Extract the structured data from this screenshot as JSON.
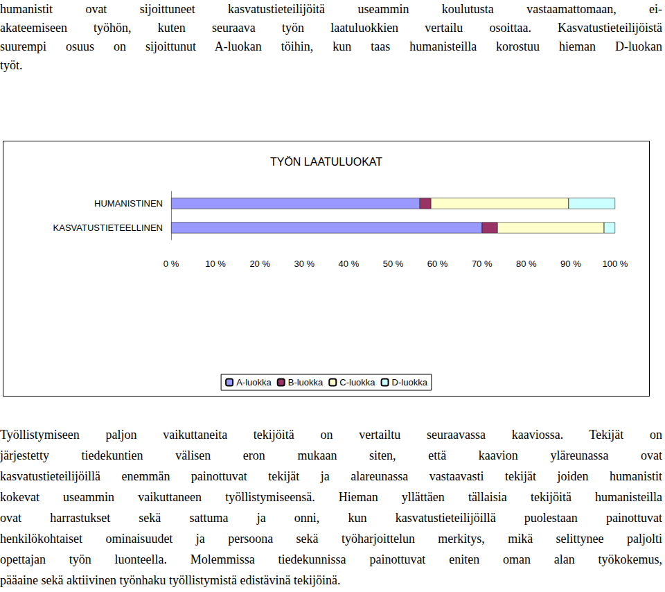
{
  "text_above": [
    "humanistit ovat sijoittuneet kasvatustieteilijöitä useammin koulutusta vastaamattomaan, ei-",
    "akateemiseen työhön, kuten seuraava työn laatuluokkien vertailu osoittaa. Kasvatustieteilijöistä",
    "suurempi osuus on sijoittunut A-luokan töihin, kun taas humanisteilla korostuu hieman D-luokan",
    "työt."
  ],
  "chart_data": {
    "type": "bar",
    "title": "TYÖN LAATULUOKAT",
    "orientation": "horizontal",
    "stacked": true,
    "legend": "bottom",
    "grid": false,
    "categories": [
      "HUMANISTINEN",
      "KASVATUSTIETEELLINEN"
    ],
    "series": [
      {
        "name": "A-luokka",
        "color": "#9999ff",
        "values": [
          56,
          70
        ]
      },
      {
        "name": "B-luokka",
        "color": "#993366",
        "values": [
          2.5,
          3.5
        ]
      },
      {
        "name": "C-luokka",
        "color": "#ffffcc",
        "values": [
          31,
          24
        ]
      },
      {
        "name": "D-luokka",
        "color": "#ccffff",
        "values": [
          10.5,
          2.5
        ]
      }
    ],
    "xlim": [
      0,
      100
    ],
    "xticks": [
      {
        "value": 0,
        "label": "0 %"
      },
      {
        "value": 10,
        "label": "10 %"
      },
      {
        "value": 20,
        "label": "20 %"
      },
      {
        "value": 30,
        "label": "30 %"
      },
      {
        "value": 40,
        "label": "40 %"
      },
      {
        "value": 50,
        "label": "50 %"
      },
      {
        "value": 60,
        "label": "60 %"
      },
      {
        "value": 70,
        "label": "70 %"
      },
      {
        "value": 80,
        "label": "80 %"
      },
      {
        "value": 90,
        "label": "90 %"
      },
      {
        "value": 100,
        "label": "100 %"
      }
    ]
  },
  "text_below": [
    "Työllistymiseen paljon vaikuttaneita tekijöitä on vertailtu seuraavassa kaaviossa. Tekijät on",
    "järjestetty tiedekuntien välisen eron mukaan siten, että kaavion yläreunassa ovat",
    "kasvatustieteilijöillä enemmän painottuvat tekijät ja alareunassa vastaavasti tekijät joiden humanistit",
    "kokevat useammin vaikuttaneen työllistymiseensä. Hieman yllättäen tällaisia tekijöitä humanisteilla",
    "ovat harrastukset sekä sattuma ja onni, kun kasvatustieteilijöillä puolestaan painottuvat",
    "henkilökohtaiset ominaisuudet ja persoona sekä työharjoittelun merkitys, mikä selittynee paljolti",
    "opettajan työn luonteella. Molemmissa tiedekunnissa painottuvat eniten oman alan työkokemus,",
    "pääaine sekä aktiivinen työnhaku työllistymistä edistävinä tekijöinä."
  ]
}
